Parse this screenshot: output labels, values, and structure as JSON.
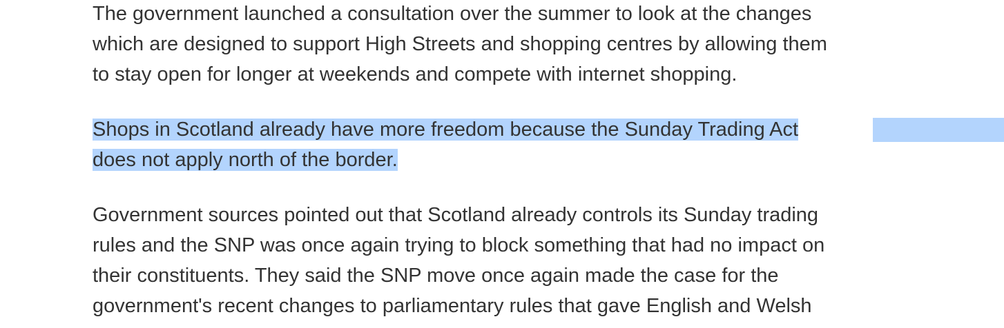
{
  "article": {
    "paragraphs": [
      "The government launched a consultation over the summer to look at the changes\nwhich are designed to support High Streets and shopping centres by allowing them\nto stay open for longer at weekends and compete with internet shopping.",
      "Shops in Scotland already have more freedom because the Sunday Trading Act\ndoes not apply north of the border.",
      "Government sources pointed out that Scotland already controls its Sunday trading\nrules and the SNP was once again trying to block something that had no impact on\ntheir constituents. They said the SNP move once again made the case for the\ngovernment's recent changes to parliamentary rules that gave English and Welsh"
    ],
    "selection_color": "#b3d4fd",
    "text_color": "#333333"
  }
}
